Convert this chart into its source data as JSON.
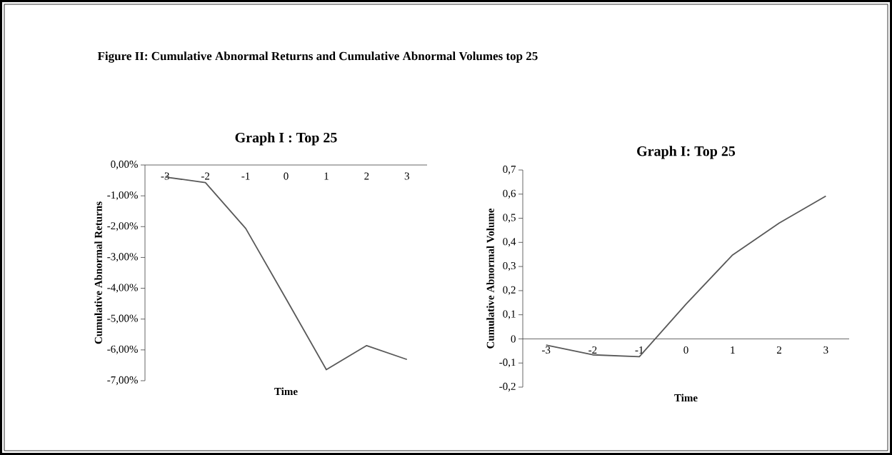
{
  "chart_data": [
    {
      "type": "line",
      "title": "Graph I : Top 25",
      "xlabel": "Time",
      "ylabel": "Cumulative Abnormal Returns",
      "annotations": [
        "Figure II: Cumulative Abnormal Returns and Cumulative Abnormal Volumes top 25"
      ],
      "categories": [
        "-3",
        "-2",
        "-1",
        "0",
        "1",
        "2",
        "3"
      ],
      "series": [
        {
          "color": "#595959",
          "values": [
            -0.39,
            -0.57,
            -2.06,
            -4.34,
            -6.64,
            -5.86,
            -6.31
          ]
        }
      ],
      "ylim": [
        -7,
        0
      ],
      "yticks": [
        {
          "value": 0,
          "label": "0,00%"
        },
        {
          "value": -1,
          "label": "-1,00%"
        },
        {
          "value": -2,
          "label": "-2,00%"
        },
        {
          "value": -3,
          "label": "-3,00%"
        },
        {
          "value": -4,
          "label": "-4,00%"
        },
        {
          "value": -5,
          "label": "-5,00%"
        },
        {
          "value": -6,
          "label": "-6,00%"
        },
        {
          "value": -7,
          "label": "-7,00%"
        }
      ]
    },
    {
      "type": "line",
      "title": "Graph I: Top 25",
      "xlabel": "Time",
      "ylabel": "Cumulative Abnormal Volume",
      "categories": [
        "-3",
        "-2",
        "-1",
        "0",
        "1",
        "2",
        "3"
      ],
      "series": [
        {
          "color": "#595959",
          "values": [
            -0.026,
            -0.066,
            -0.074,
            0.144,
            0.348,
            0.48,
            0.592
          ]
        }
      ],
      "ylim": [
        -0.2,
        0.7
      ],
      "yticks": [
        {
          "value": 0.7,
          "label": "0,7"
        },
        {
          "value": 0.6,
          "label": "0,6"
        },
        {
          "value": 0.5,
          "label": "0,5"
        },
        {
          "value": 0.4,
          "label": "0,4"
        },
        {
          "value": 0.3,
          "label": "0,3"
        },
        {
          "value": 0.2,
          "label": "0,2"
        },
        {
          "value": 0.1,
          "label": "0,1"
        },
        {
          "value": 0,
          "label": "0"
        },
        {
          "value": -0.1,
          "label": "-0,1"
        },
        {
          "value": -0.2,
          "label": "-0,2"
        }
      ]
    }
  ]
}
